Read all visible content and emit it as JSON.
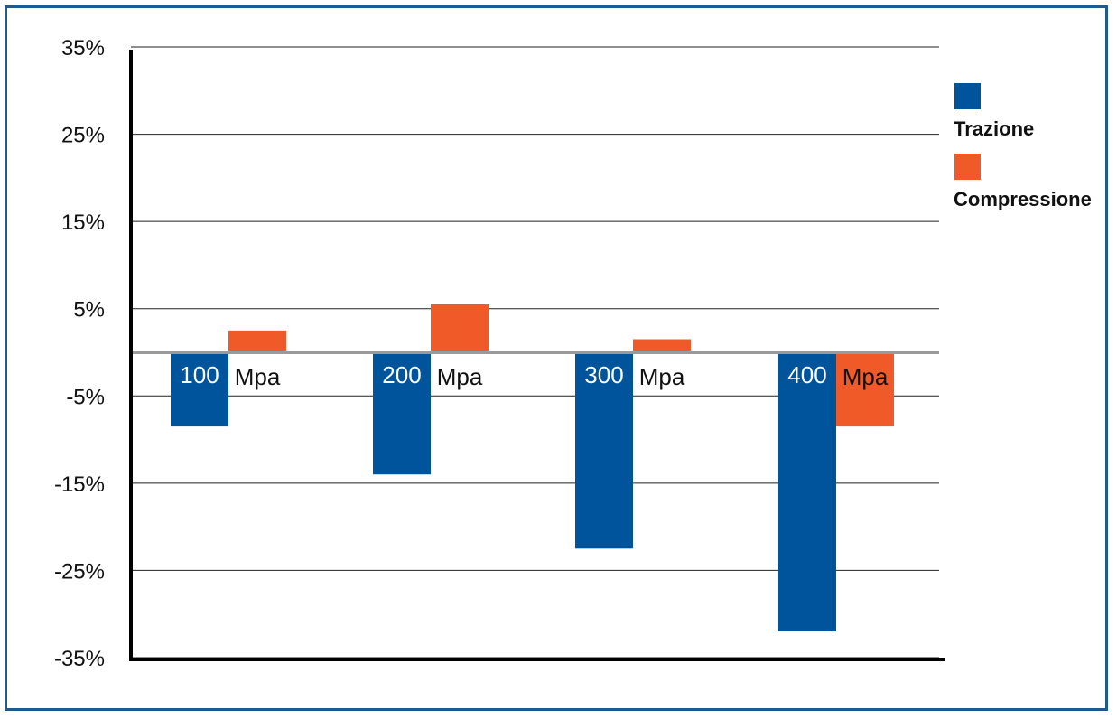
{
  "chart_data": {
    "type": "bar",
    "categories": [
      "100",
      "200",
      "300",
      "400"
    ],
    "category_unit": "Mpa",
    "series": [
      {
        "name": "Trazione",
        "color": "#00549c",
        "values": [
          -8.5,
          -14,
          -22.5,
          -32
        ]
      },
      {
        "name": "Compressione",
        "color": "#f05a28",
        "values": [
          2.5,
          5.5,
          1.5,
          -8.5
        ]
      }
    ],
    "yticks": [
      35,
      25,
      15,
      5,
      -5,
      -15,
      -25,
      -35
    ],
    "ytick_labels": [
      "35%",
      "25%",
      "15%",
      "5%",
      "-5%",
      "-15%",
      "-25%",
      "-35%"
    ],
    "ylim": [
      -35,
      35
    ],
    "grid": true,
    "legend_position": "right"
  }
}
